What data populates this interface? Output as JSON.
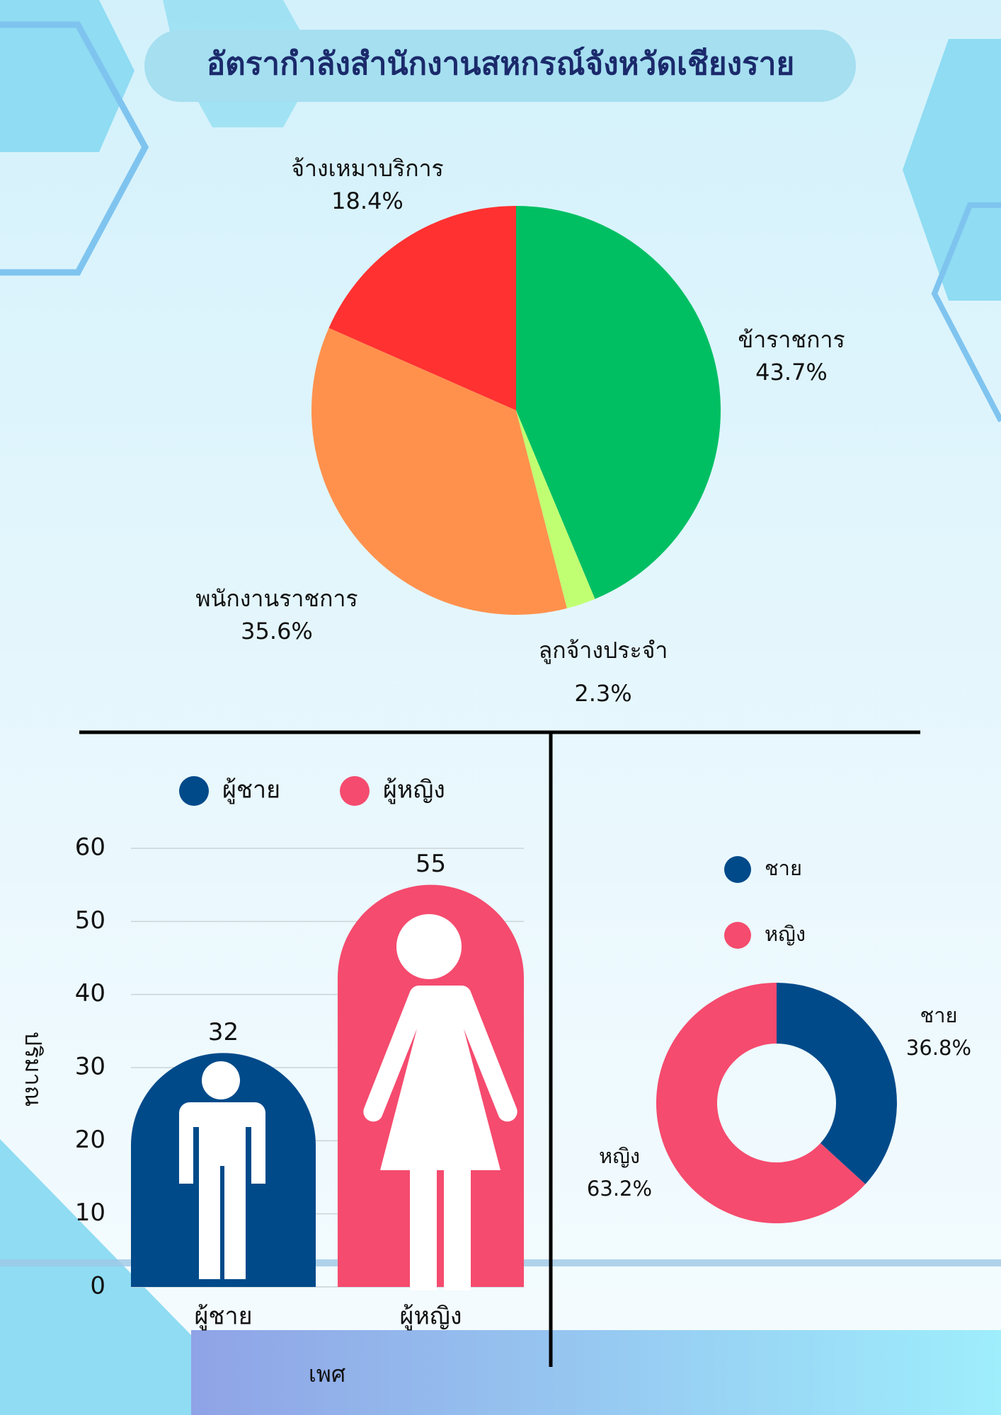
{
  "title": "อัตรากำลังสำนักงานสหกรณ์จังหวัดเชียงราย",
  "chart_data": [
    {
      "type": "pie",
      "categories": [
        "ข้าราชการ",
        "ลูกจ้างประจำ",
        "พนักงานราชการ",
        "จ้างเหมาบริการ"
      ],
      "values": [
        43.7,
        2.3,
        35.6,
        18.4
      ],
      "value_labels": [
        "43.7%",
        "2.3%",
        "35.6%",
        "18.4%"
      ],
      "colors": [
        "#00bf63",
        "#c1ff72",
        "#ff914d",
        "#ff3131"
      ]
    },
    {
      "type": "bar",
      "categories": [
        "ผู้ชาย",
        "ผู้หญิง"
      ],
      "values": [
        32,
        55
      ],
      "colors": [
        "#004a8a",
        "#f54b6e"
      ],
      "ylim": [
        0,
        60
      ],
      "yticks": [
        0,
        10,
        20,
        30,
        40,
        50,
        60
      ],
      "grid": true,
      "y_label": "ปริมาณ",
      "x_label": "เพศ"
    },
    {
      "type": "donut",
      "categories": [
        "ชาย",
        "หญิง"
      ],
      "values": [
        36.8,
        63.2
      ],
      "value_labels": [
        "36.8%",
        "63.2%"
      ],
      "colors": [
        "#004a8a",
        "#f54b6e"
      ]
    }
  ]
}
